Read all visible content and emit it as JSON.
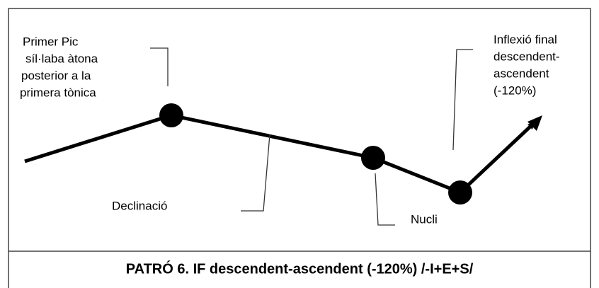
{
  "labels": {
    "first_peak": [
      "Primer Pic",
      "síl·laba àtona",
      "posterior a la",
      "primera tònica"
    ],
    "declination": "Declinació",
    "nucleus": "Nucli",
    "final_inflection": [
      "Inflexió final",
      "descendent-",
      "ascendent",
      "(-120%)"
    ]
  },
  "caption": "PATRÓ 6. IF descendent-ascendent (-120%) /-I+E+S/"
}
